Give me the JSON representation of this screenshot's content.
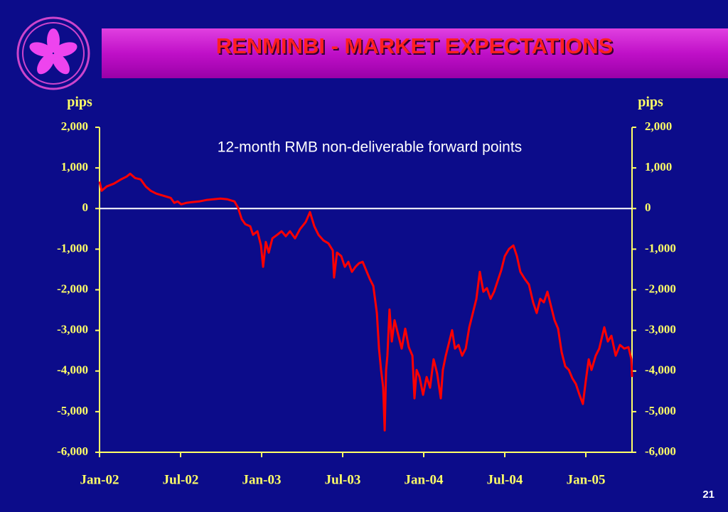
{
  "page_number": "21",
  "chart_data": {
    "type": "line",
    "title": "RENMINBI - MARKET EXPECTATIONS",
    "subtitle": "12-month RMB non-deliverable forward points",
    "y_label": "pips",
    "y2_label": "pips",
    "color": "#ff0000",
    "zero_line": true,
    "xlim": [
      2002,
      2005.285
    ],
    "xticks": [
      {
        "value": 2002,
        "label": "Jan-02"
      },
      {
        "value": 2002.5,
        "label": "Jul-02"
      },
      {
        "value": 2003,
        "label": "Jan-03"
      },
      {
        "value": 2003.5,
        "label": "Jul-03"
      },
      {
        "value": 2004,
        "label": "Jan-04"
      },
      {
        "value": 2004.5,
        "label": "Jul-04"
      },
      {
        "value": 2005,
        "label": "Jan-05"
      }
    ],
    "ylim": [
      -6000,
      2000
    ],
    "yticks": [
      {
        "value": 2000,
        "label": "2,000"
      },
      {
        "value": 1000,
        "label": "1,000"
      },
      0,
      {
        "value": -1000,
        "label": "-1,000"
      },
      {
        "value": -2000,
        "label": "-2,000"
      },
      {
        "value": -3000,
        "label": "-3,000"
      },
      {
        "value": -4000,
        "label": "-4,000"
      },
      {
        "value": -5000,
        "label": "-5,000"
      },
      {
        "value": -6000,
        "label": "-6,000"
      }
    ],
    "y2lim": [
      -6000,
      2000
    ],
    "y2ticks": [
      {
        "value": 2000,
        "label": "2,000"
      },
      {
        "value": 1000,
        "label": "1,000"
      },
      0,
      {
        "value": -1000,
        "label": "-1,000"
      },
      {
        "value": -2000,
        "label": "-2,000"
      },
      {
        "value": -3000,
        "label": "-3,000"
      },
      {
        "value": -4000,
        "label": "-4,000"
      },
      {
        "value": -5000,
        "label": "-5,000"
      },
      {
        "value": -6000,
        "label": "-6,000"
      }
    ],
    "x": [
      2002.0,
      2002.013,
      2002.044,
      2002.088,
      2002.132,
      2002.167,
      2002.189,
      2002.219,
      2002.254,
      2002.285,
      2002.316,
      2002.351,
      2002.395,
      2002.439,
      2002.461,
      2002.482,
      2002.504,
      2002.535,
      2002.57,
      2002.614,
      2002.658,
      2002.702,
      2002.746,
      2002.789,
      2002.833,
      2002.855,
      2002.877,
      2002.899,
      2002.93,
      2002.947,
      2002.974,
      2002.996,
      2003.009,
      2003.026,
      2003.044,
      2003.066,
      2003.096,
      2003.123,
      2003.149,
      2003.175,
      2003.206,
      2003.237,
      2003.272,
      2003.298,
      2003.325,
      2003.351,
      2003.382,
      2003.412,
      2003.439,
      2003.447,
      2003.465,
      2003.491,
      2003.513,
      2003.535,
      2003.557,
      2003.579,
      2003.601,
      2003.623,
      2003.645,
      2003.667,
      2003.689,
      2003.711,
      2003.724,
      2003.737,
      2003.75,
      2003.759,
      2003.768,
      2003.776,
      2003.789,
      2003.803,
      2003.82,
      2003.842,
      2003.864,
      2003.886,
      2003.908,
      2003.93,
      2003.943,
      2003.956,
      2003.974,
      2003.996,
      2004.018,
      2004.039,
      2004.061,
      2004.083,
      2004.105,
      2004.118,
      2004.136,
      2004.158,
      2004.175,
      2004.193,
      2004.215,
      2004.237,
      2004.259,
      2004.281,
      2004.303,
      2004.325,
      2004.346,
      2004.368,
      2004.39,
      2004.412,
      2004.434,
      2004.456,
      2004.478,
      2004.5,
      2004.526,
      2004.553,
      2004.575,
      2004.596,
      2004.623,
      2004.649,
      2004.675,
      2004.697,
      2004.719,
      2004.741,
      2004.763,
      2004.785,
      2004.807,
      2004.829,
      2004.851,
      2004.873,
      2004.895,
      2004.917,
      2004.939,
      2004.961,
      2004.982,
      2005.0,
      2005.018,
      2005.035,
      2005.061,
      2005.083,
      2005.114,
      2005.136,
      2005.158,
      2005.184,
      2005.211,
      2005.237,
      2005.263,
      2005.281,
      2005.285
    ],
    "values": [
      665,
      437,
      543,
      612,
      717,
      787,
      857,
      752,
      717,
      543,
      437,
      367,
      315,
      262,
      140,
      175,
      105,
      140,
      157,
      175,
      210,
      227,
      245,
      227,
      175,
      17,
      -262,
      -385,
      -437,
      -647,
      -560,
      -910,
      -1435,
      -822,
      -1085,
      -735,
      -647,
      -560,
      -682,
      -560,
      -735,
      -507,
      -332,
      -87,
      -437,
      -647,
      -787,
      -857,
      -1032,
      -1697,
      -1085,
      -1172,
      -1435,
      -1312,
      -1557,
      -1435,
      -1347,
      -1312,
      -1522,
      -1732,
      -1907,
      -2572,
      -3447,
      -3972,
      -4410,
      -5460,
      -3972,
      -3622,
      -2485,
      -3272,
      -2747,
      -3097,
      -3447,
      -2957,
      -3412,
      -3622,
      -4672,
      -3972,
      -4147,
      -4585,
      -4147,
      -4410,
      -3710,
      -4060,
      -4672,
      -3972,
      -3622,
      -3272,
      -2995,
      -3447,
      -3359,
      -3622,
      -3447,
      -2922,
      -2572,
      -2222,
      -1557,
      -2047,
      -1960,
      -2222,
      -2047,
      -1785,
      -1522,
      -1172,
      -997,
      -910,
      -1172,
      -1557,
      -1732,
      -1872,
      -2310,
      -2572,
      -2222,
      -2310,
      -2047,
      -2397,
      -2747,
      -2957,
      -3535,
      -3885,
      -3972,
      -4182,
      -4322,
      -4585,
      -4812,
      -4235,
      -3710,
      -3972,
      -3622,
      -3447,
      -2922,
      -3272,
      -3132,
      -3622,
      -3359,
      -3447,
      -3412,
      -3710,
      -4147
    ]
  }
}
